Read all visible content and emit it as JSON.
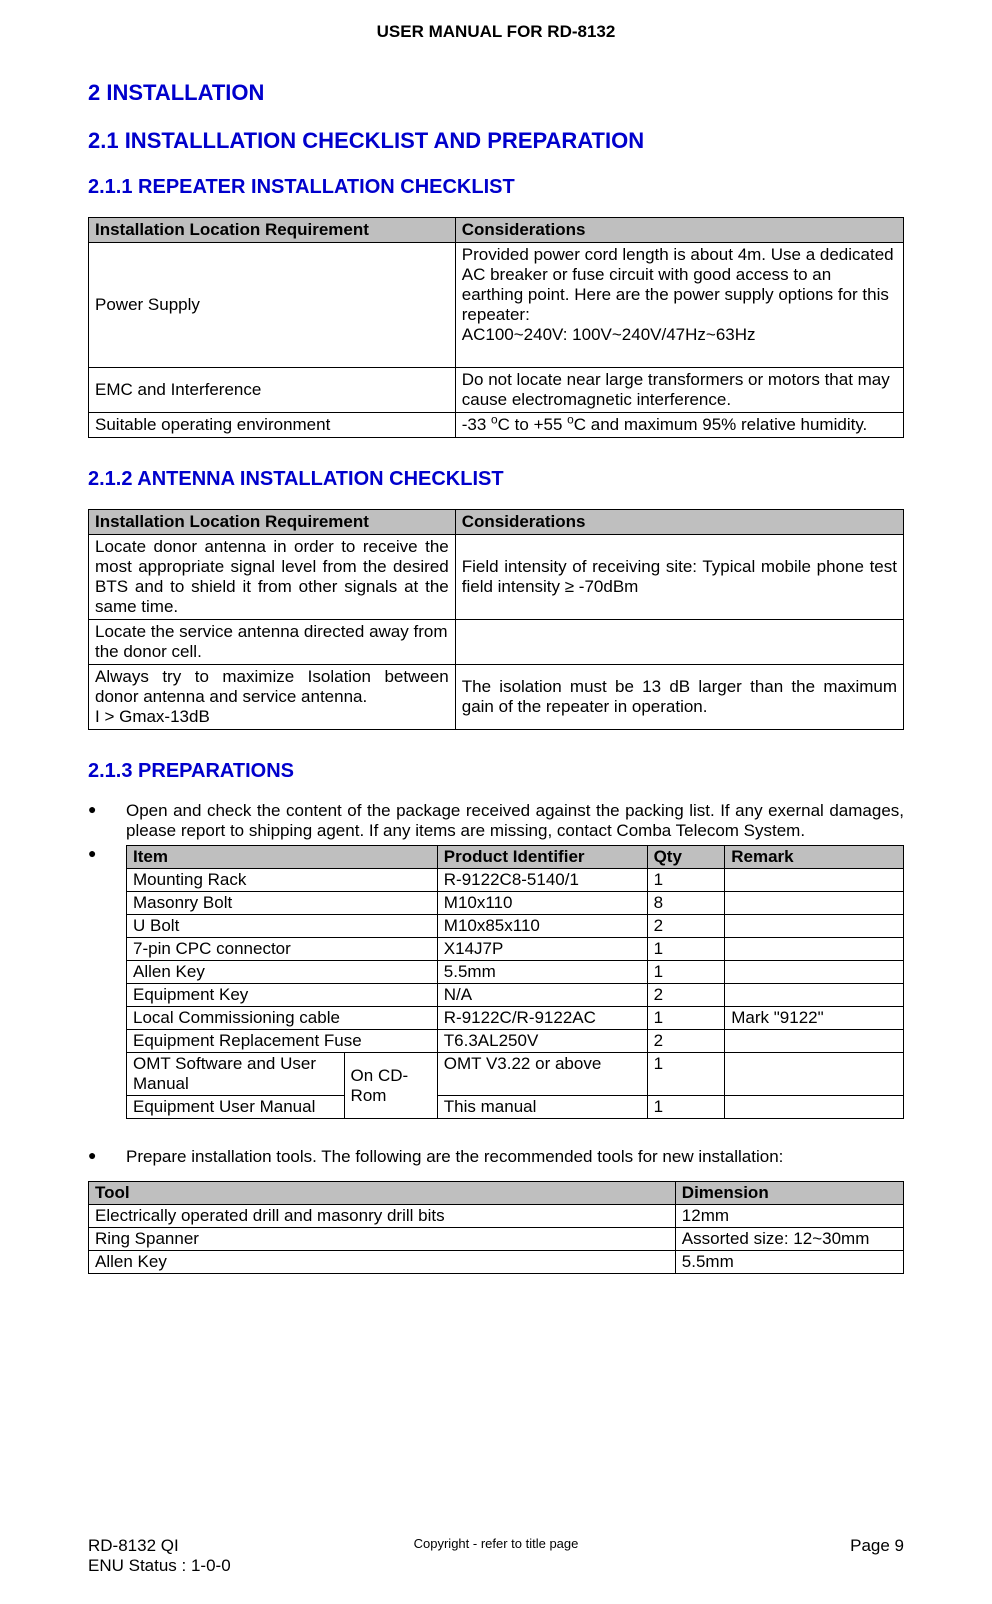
{
  "header": {
    "title": "USER MANUAL FOR RD-8132"
  },
  "section": {
    "num_title": "2  INSTALLATION",
    "sub_title": "2.1  INSTALLLATION CHECKLIST AND PREPARATION",
    "s211_title": "2.1.1  REPEATER INSTALLATION CHECKLIST",
    "s212_title": "2.1.2  ANTENNA INSTALLATION CHECKLIST",
    "s213_title": "2.1.3  PREPARATIONS"
  },
  "table211": {
    "columns": [
      "Installation Location Requirement",
      "Considerations"
    ],
    "rows": [
      {
        "req": "Power  Supply",
        "cons_lines": [
          "Provided power cord length is about 4m. Use a dedicated AC breaker or fuse circuit with good access to an earthing point.  Here are the power supply options for this repeater:",
          "AC100~240V: 100V~240V/47Hz~63Hz",
          " "
        ]
      },
      {
        "req": "EMC and Interference",
        "cons_lines": [
          "Do not locate near large transformers or motors that may cause electromagnetic interference."
        ]
      },
      {
        "req": "Suitable operating environment",
        "cons_html": "-33&nbsp;<sup>o</sup>C to +55&nbsp;<sup>o</sup>C and maximum 95% relative humidity."
      }
    ]
  },
  "table212": {
    "columns": [
      "Installation Location Requirement",
      "Considerations"
    ],
    "rows": [
      {
        "req": "Locate donor antenna in order to receive the most appropriate signal level from the desired BTS and to shield it from other signals at the same time.",
        "cons": "Field intensity of receiving site: Typical mobile phone test field intensity ≥ -70dBm"
      },
      {
        "req": "Locate the service antenna directed away from the donor cell.",
        "cons": ""
      },
      {
        "req_lines": [
          "Always try to maximize Isolation between donor antenna and service antenna.",
          "I > Gmax-13dB"
        ],
        "cons": "The isolation must be 13 dB larger than the maximum gain of the repeater in operation."
      }
    ]
  },
  "preparations": {
    "bullet1": "Open and check the content of the package received against the packing list. If any exernal damages, please report to shipping agent. If any items are missing, contact Comba Telecom System.",
    "table": {
      "columns": [
        "Item",
        "Product Identifier",
        "Qty",
        "Remark"
      ],
      "col_widths": [
        "40%",
        "28%",
        "10%",
        "22%"
      ],
      "rows": [
        {
          "item": "Mounting Rack",
          "pid": "R-9122C8-5140/1",
          "qty": "1",
          "remark": ""
        },
        {
          "item": "Masonry Bolt",
          "pid": "M10x110",
          "qty": "8",
          "remark": ""
        },
        {
          "item": "U Bolt",
          "pid": "M10x85x110",
          "qty": "2",
          "remark": ""
        },
        {
          "item": "7-pin CPC connector",
          "pid": "X14J7P",
          "qty": "1",
          "remark": ""
        },
        {
          "item": "Allen Key",
          "pid": "5.5mm",
          "qty": "1",
          "remark": ""
        },
        {
          "item": "Equipment Key",
          "pid": "N/A",
          "qty": "2",
          "remark": ""
        },
        {
          "item": "Local Commissioning cable",
          "pid": "R-9122C/R-9122AC",
          "qty": "1",
          "remark": "Mark \"9122\""
        },
        {
          "item": "Equipment Replacement Fuse",
          "pid": "T6.3AL250V",
          "qty": "2",
          "remark": ""
        }
      ],
      "merged_rows": {
        "shared_label": "On CD-Rom",
        "rows": [
          {
            "item": "OMT Software and User Manual",
            "pid": "OMT V3.22 or above",
            "qty": "1",
            "remark": ""
          },
          {
            "item": "Equipment User Manual",
            "pid": "This manual",
            "qty": "1",
            "remark": ""
          }
        ]
      }
    },
    "bullet3": "Prepare installation tools. The following are the recommended tools for new installation:",
    "tool_table": {
      "columns": [
        "Tool",
        "Dimension"
      ],
      "col_widths": [
        "72%",
        "28%"
      ],
      "rows": [
        {
          "tool": "Electrically operated drill and masonry drill bits",
          "dim": "12mm"
        },
        {
          "tool": "Ring Spanner",
          "dim": "Assorted size: 12~30mm"
        },
        {
          "tool": "Allen Key",
          "dim": "5.5mm"
        }
      ]
    }
  },
  "footer": {
    "left1": "RD-8132 QI",
    "left2": "ENU Status : 1-0-0",
    "center": "Copyright - refer to title page",
    "right": "Page 9"
  },
  "colors": {
    "heading": "#0000cc",
    "table_header_bg": "#bfbfbf",
    "border": "#000000",
    "text": "#000000",
    "background": "#ffffff"
  },
  "typography": {
    "body_fontsize_pt": 13,
    "heading1_fontsize_pt": 17,
    "heading2_fontsize_pt": 17,
    "heading3_fontsize_pt": 15
  }
}
